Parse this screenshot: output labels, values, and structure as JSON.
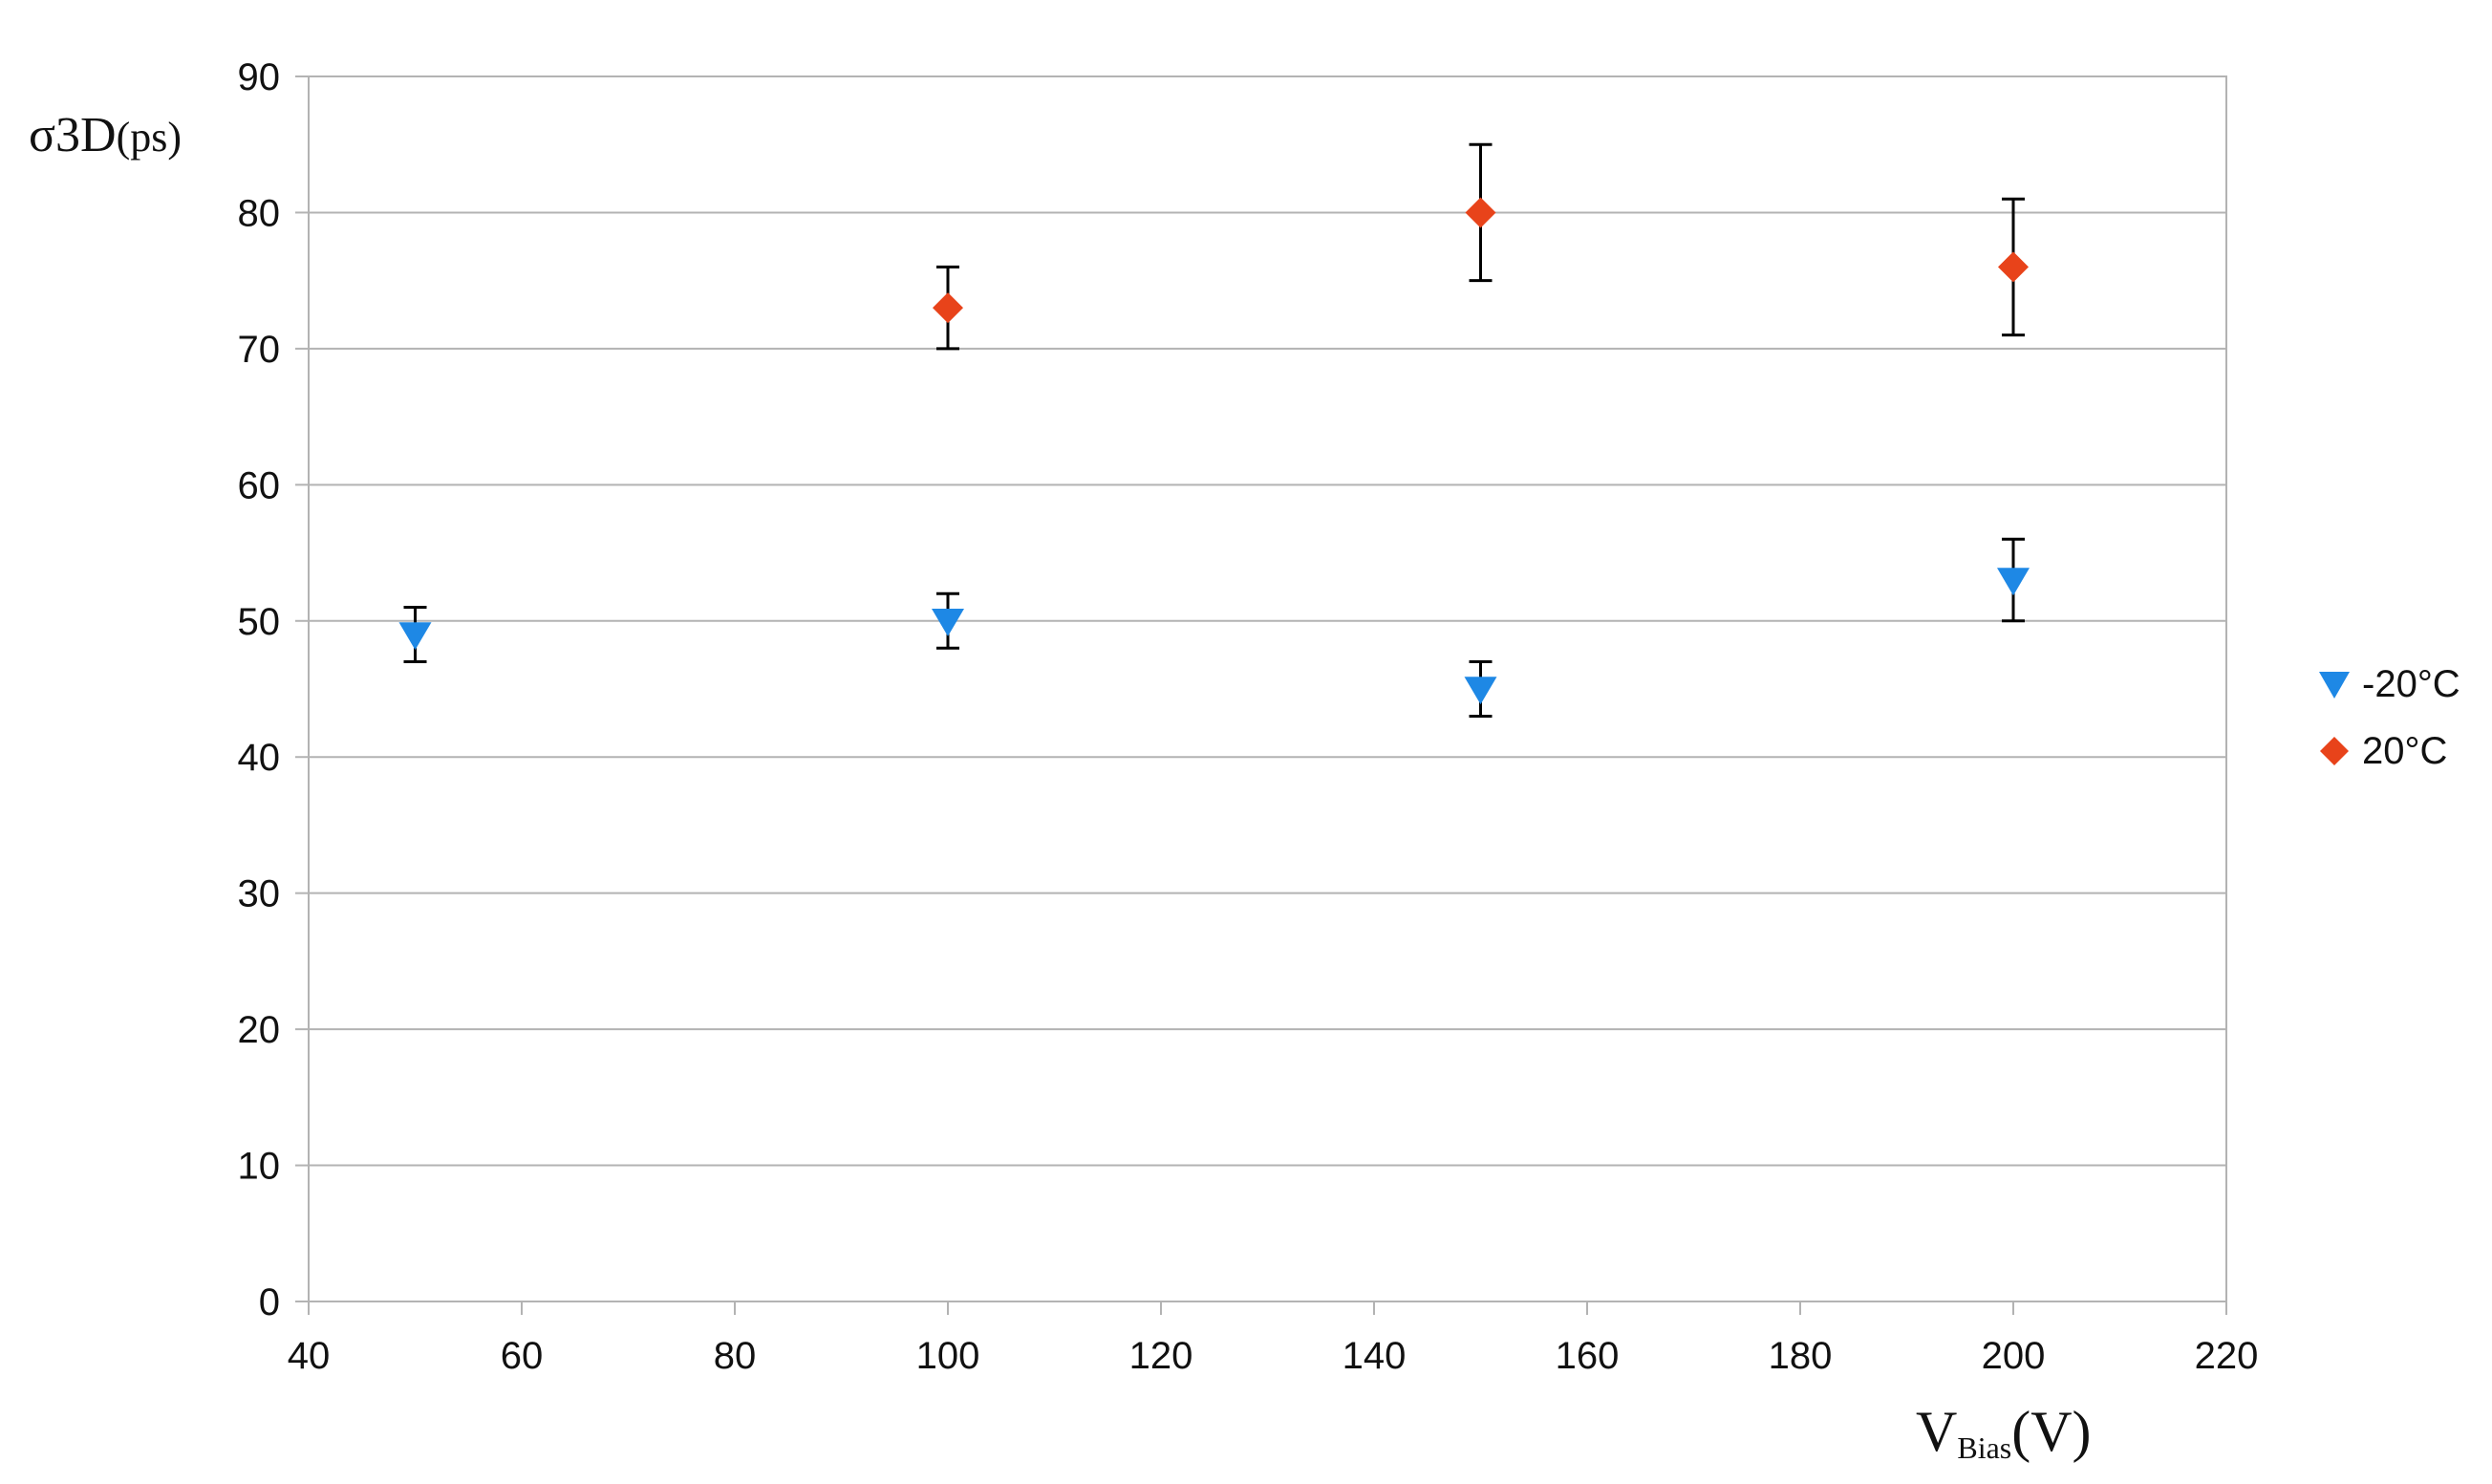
{
  "chart_data": {
    "type": "scatter",
    "title": "",
    "ylabel": {
      "main": "σ3D",
      "unit": "(ps)"
    },
    "xlabel": {
      "main": "V",
      "subscript": "Bias",
      "unit": "(V)"
    },
    "xlim": [
      40,
      220
    ],
    "ylim": [
      0,
      90
    ],
    "x_ticks": [
      40,
      60,
      80,
      100,
      120,
      140,
      160,
      180,
      200,
      220
    ],
    "y_ticks": [
      0,
      10,
      20,
      30,
      40,
      50,
      60,
      70,
      80,
      90
    ],
    "grid": {
      "horizontal": true,
      "vertical": false
    },
    "legend": {
      "position": "right"
    },
    "series": [
      {
        "name": "-20°C",
        "marker": "triangle-down-icon",
        "color": "#1E88E5",
        "points": [
          {
            "x": 50,
            "y": 49,
            "err_low": 2,
            "err_high": 2
          },
          {
            "x": 100,
            "y": 50,
            "err_low": 2,
            "err_high": 2
          },
          {
            "x": 150,
            "y": 45,
            "err_low": 2,
            "err_high": 2
          },
          {
            "x": 200,
            "y": 53,
            "err_low": 3,
            "err_high": 3
          }
        ]
      },
      {
        "name": "20°C",
        "marker": "diamond-icon",
        "color": "#E8431A",
        "points": [
          {
            "x": 100,
            "y": 73,
            "err_low": 3,
            "err_high": 3
          },
          {
            "x": 150,
            "y": 80,
            "err_low": 5,
            "err_high": 5
          },
          {
            "x": 200,
            "y": 76,
            "err_low": 5,
            "err_high": 5
          }
        ]
      }
    ]
  }
}
